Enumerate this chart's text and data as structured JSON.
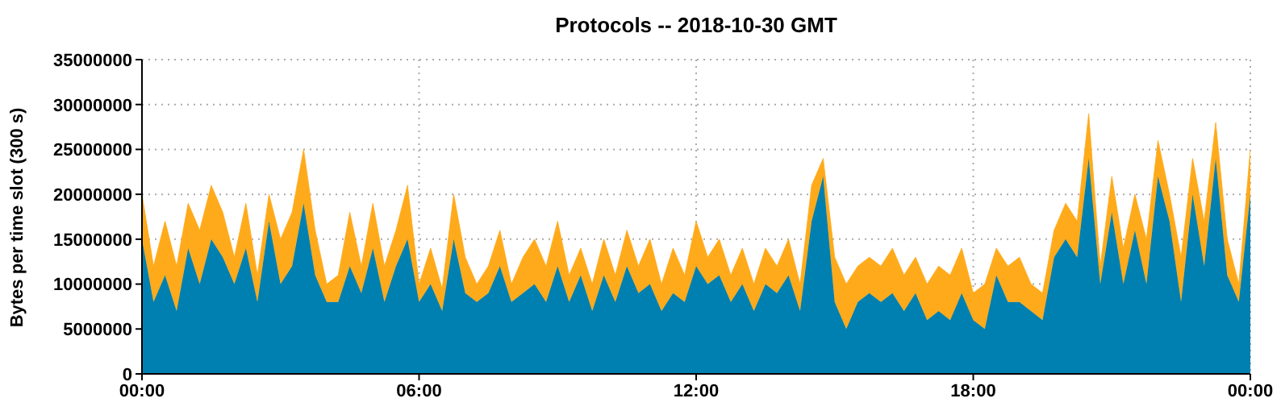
{
  "chart_data": {
    "type": "area",
    "title": "Protocols -- 2018-10-30 GMT",
    "ylabel": "Bytes per time slot (300 s)",
    "x": [
      0,
      0.25,
      0.5,
      0.75,
      1,
      1.25,
      1.5,
      1.75,
      2,
      2.25,
      2.5,
      2.75,
      3,
      3.25,
      3.5,
      3.75,
      4,
      4.25,
      4.5,
      4.75,
      5,
      5.25,
      5.5,
      5.75,
      6,
      6.25,
      6.5,
      6.75,
      7,
      7.25,
      7.5,
      7.75,
      8,
      8.25,
      8.5,
      8.75,
      9,
      9.25,
      9.5,
      9.75,
      10,
      10.25,
      10.5,
      10.75,
      11,
      11.25,
      11.5,
      11.75,
      12,
      12.25,
      12.5,
      12.75,
      13,
      13.25,
      13.5,
      13.75,
      14,
      14.25,
      14.5,
      14.75,
      15,
      15.25,
      15.5,
      15.75,
      16,
      16.25,
      16.5,
      16.75,
      17,
      17.25,
      17.5,
      17.75,
      18,
      18.25,
      18.5,
      18.75,
      19,
      19.25,
      19.5,
      19.75,
      20,
      20.25,
      20.5,
      20.75,
      21,
      21.25,
      21.5,
      21.75,
      22,
      22.25,
      22.5,
      22.75,
      23,
      23.25,
      23.5,
      23.75,
      24
    ],
    "series": [
      {
        "color": "#0080b0",
        "values": [
          15000000,
          8000000,
          11000000,
          7000000,
          14000000,
          10000000,
          15000000,
          13000000,
          10000000,
          14000000,
          8000000,
          17000000,
          10000000,
          12000000,
          19000000,
          11000000,
          8000000,
          8000000,
          12000000,
          9000000,
          14000000,
          8000000,
          12000000,
          15000000,
          8000000,
          10000000,
          7000000,
          15000000,
          9000000,
          8000000,
          9000000,
          12000000,
          8000000,
          9000000,
          10000000,
          8000000,
          12000000,
          8000000,
          11000000,
          7000000,
          11000000,
          8000000,
          12000000,
          9000000,
          10000000,
          7000000,
          9000000,
          8000000,
          12000000,
          10000000,
          11000000,
          8000000,
          10000000,
          7000000,
          10000000,
          9000000,
          11000000,
          7000000,
          17000000,
          22000000,
          8000000,
          5000000,
          8000000,
          9000000,
          8000000,
          9000000,
          7000000,
          9000000,
          6000000,
          7000000,
          6000000,
          9000000,
          6000000,
          5000000,
          11000000,
          8000000,
          8000000,
          7000000,
          6000000,
          13000000,
          15000000,
          13000000,
          24000000,
          10000000,
          18000000,
          10000000,
          16000000,
          10000000,
          22000000,
          17000000,
          8000000,
          20000000,
          12000000,
          24000000,
          11000000,
          8000000,
          20000000
        ]
      },
      {
        "color": "#ffaa1a",
        "values": [
          5000000,
          4000000,
          6000000,
          5000000,
          5000000,
          6000000,
          6000000,
          5000000,
          3000000,
          5000000,
          3000000,
          3000000,
          5000000,
          6000000,
          6000000,
          5000000,
          2000000,
          3000000,
          6000000,
          3000000,
          5000000,
          4000000,
          4000000,
          6000000,
          2000000,
          4000000,
          2500000,
          5000000,
          4000000,
          2000000,
          3000000,
          4000000,
          2000000,
          4000000,
          5000000,
          4000000,
          5000000,
          3000000,
          3000000,
          3000000,
          4000000,
          3000000,
          4000000,
          3000000,
          5000000,
          3000000,
          5000000,
          3000000,
          5000000,
          3000000,
          4000000,
          3000000,
          4000000,
          3000000,
          4000000,
          3000000,
          4000000,
          3000000,
          4000000,
          2000000,
          5000000,
          5000000,
          4000000,
          4000000,
          4000000,
          5000000,
          4000000,
          4000000,
          4000000,
          5000000,
          5000000,
          5000000,
          3000000,
          5000000,
          3000000,
          4000000,
          5000000,
          3000000,
          3000000,
          3000000,
          4000000,
          4000000,
          5000000,
          2000000,
          4000000,
          4000000,
          4000000,
          5000000,
          4000000,
          3000000,
          5000000,
          4000000,
          5000000,
          4000000,
          4000000,
          2000000,
          5000000
        ]
      }
    ],
    "stacked": true,
    "xlim": [
      0,
      24
    ],
    "xticks": [
      {
        "value": 0,
        "label": "00:00"
      },
      {
        "value": 6,
        "label": "06:00"
      },
      {
        "value": 12,
        "label": "12:00"
      },
      {
        "value": 18,
        "label": "18:00"
      },
      {
        "value": 24,
        "label": "00:00"
      }
    ],
    "ylim": [
      0,
      35000000
    ],
    "yticks": [
      0,
      5000000,
      10000000,
      15000000,
      20000000,
      25000000,
      30000000,
      35000000
    ],
    "grid": true
  }
}
